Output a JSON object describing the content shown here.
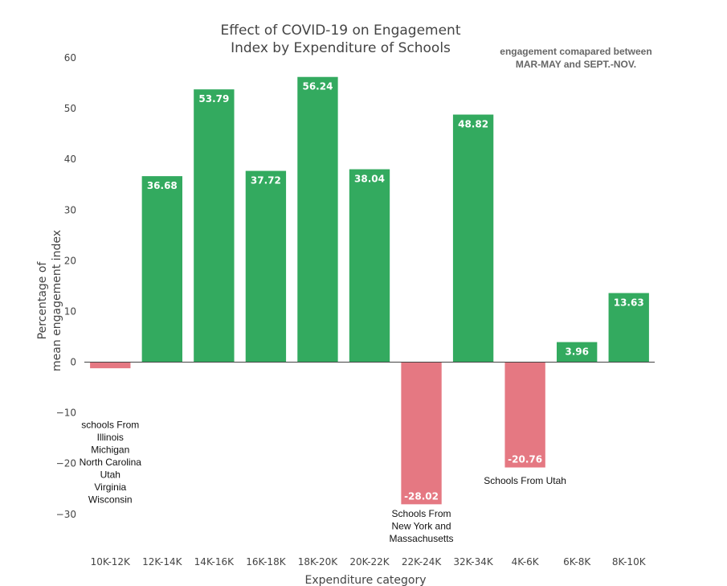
{
  "chart_data": {
    "type": "bar",
    "title_lines": [
      "Effect of COVID-19 on Engagement",
      "Index by Expenditure of Schools"
    ],
    "xlabel": "Expenditure category",
    "ylabel_lines": [
      "Percentage of",
      "mean engagement index"
    ],
    "categories": [
      "10K-12K",
      "12K-14K",
      "14K-16K",
      "16K-18K",
      "18K-20K",
      "20K-22K",
      "22K-24K",
      "32K-34K",
      "4K-6K",
      "6K-8K",
      "8K-10K"
    ],
    "values": [
      -1.2,
      36.68,
      53.79,
      37.72,
      56.24,
      38.04,
      -28.02,
      48.82,
      -20.76,
      3.96,
      13.63
    ],
    "data_labels": [
      "",
      "36.68",
      "53.79",
      "37.72",
      "56.24",
      "38.04",
      "-28.02",
      "48.82",
      "-20.76",
      "3.96",
      "13.63"
    ],
    "ylim": [
      -37,
      60
    ],
    "yticks": [
      60,
      50,
      40,
      30,
      20,
      10,
      0,
      -10,
      -20,
      -30
    ],
    "ytick_labels": [
      "60",
      "50",
      "40",
      "30",
      "20",
      "10",
      "0",
      "−10",
      "−20",
      "−30"
    ],
    "colors": {
      "positive": "#33aa5f",
      "negative": "#e57882",
      "zero_line": "#444444"
    },
    "grid": false,
    "annotations": [
      {
        "category": "10K-12K",
        "y": -13,
        "lines": [
          "schools From",
          "Illinois",
          "Michigan",
          "North Carolina",
          "Utah",
          "Virginia",
          "Wisconsin"
        ]
      },
      {
        "category": "22K-24K",
        "y": -30.5,
        "lines": [
          "Schools From",
          "New York and",
          "Massachusetts"
        ]
      },
      {
        "category": "4K-6K",
        "y": -24,
        "lines": [
          "Schools From Utah"
        ]
      }
    ],
    "note_lines": [
      "engagement comapared between",
      "MAR-MAY and SEPT.-NOV."
    ]
  }
}
